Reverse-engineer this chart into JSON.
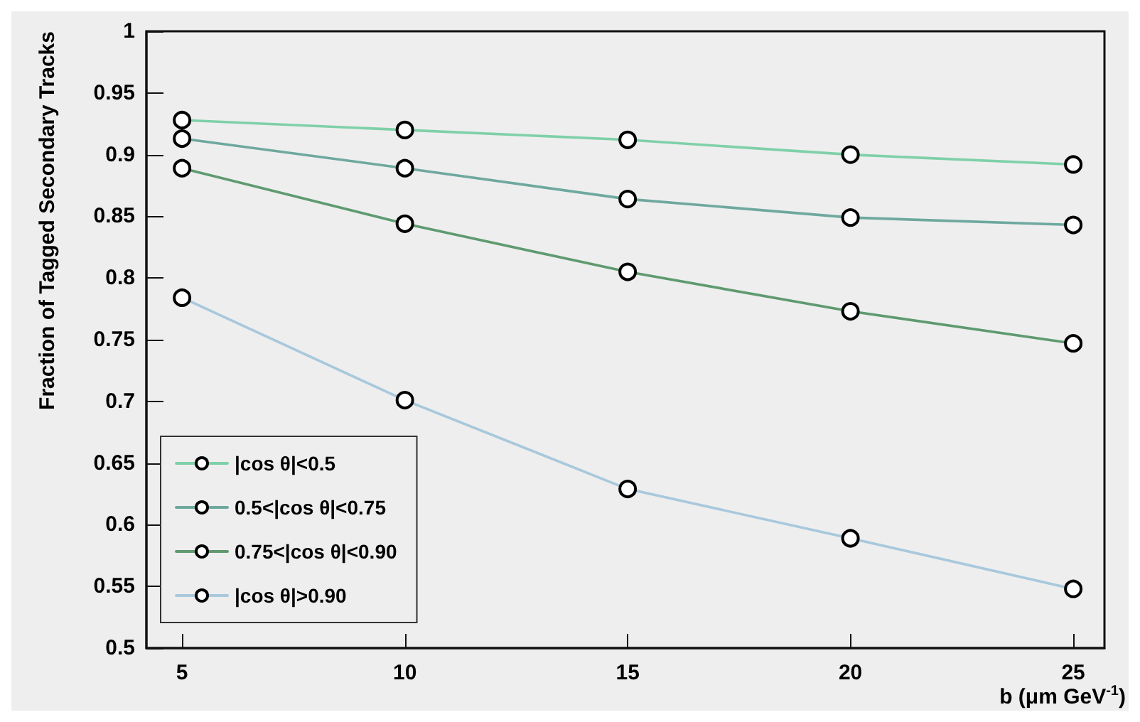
{
  "chart_data": {
    "type": "line",
    "xlabel": "b (μm GeV$^{-1}$)",
    "ylabel": "Fraction of Tagged Secondary Tracks",
    "x": [
      5,
      10,
      15,
      20,
      25
    ],
    "series": [
      {
        "name": "|cos θ|<0.5",
        "color": "#7fd0a8",
        "values": [
          0.928,
          0.92,
          0.912,
          0.9,
          0.892
        ]
      },
      {
        "name": "0.5<|cos θ|<0.75",
        "color": "#6ea89e",
        "values": [
          0.913,
          0.889,
          0.864,
          0.849,
          0.843
        ]
      },
      {
        "name": "0.75<|cos θ|<0.90",
        "color": "#5f9a70",
        "values": [
          0.889,
          0.844,
          0.805,
          0.773,
          0.747
        ]
      },
      {
        "name": "|cos θ|>0.90",
        "color": "#a8c8dc",
        "values": [
          0.784,
          0.701,
          0.629,
          0.589,
          0.548
        ]
      }
    ],
    "xlim": [
      4.2,
      25.7
    ],
    "xticks": [
      5,
      10,
      15,
      20,
      25
    ],
    "ylim": [
      0.5,
      1
    ],
    "yticks": [
      0.5,
      0.55,
      0.6,
      0.65,
      0.7,
      0.75,
      0.8,
      0.85,
      0.9,
      0.95,
      1
    ],
    "grid": false,
    "legend": "bottom left",
    "marker": "circle",
    "line_style": "solid"
  }
}
